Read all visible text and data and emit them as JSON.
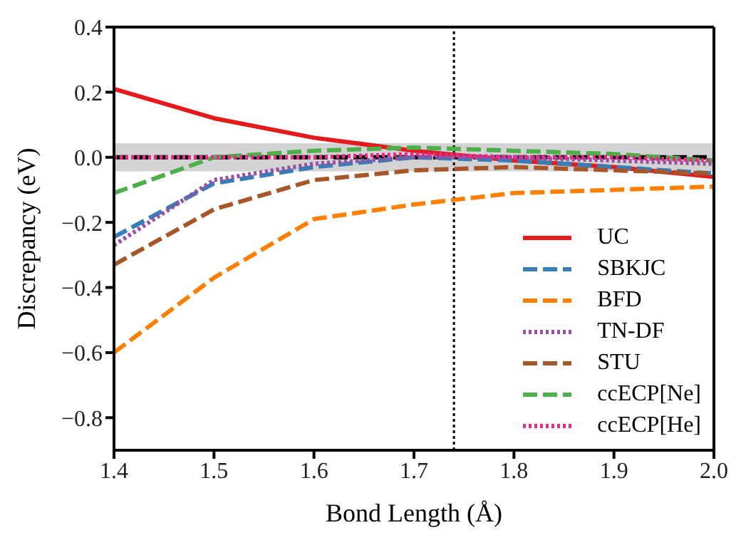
{
  "chart_data": {
    "type": "line",
    "xlabel": "Bond Length (Å)",
    "ylabel": "Discrepancy (eV)",
    "x": [
      1.4,
      1.5,
      1.6,
      1.7,
      1.8,
      1.9,
      2.0
    ],
    "xlim": [
      1.4,
      2.0
    ],
    "xticks": [
      1.4,
      1.5,
      1.6,
      1.7,
      1.8,
      1.9,
      {
        "value": 2.0,
        "label": "2.0"
      }
    ],
    "ylim": [
      -0.9,
      0.4
    ],
    "yticks": [
      -0.8,
      -0.6,
      -0.4,
      -0.2,
      {
        "value": 0.0,
        "label": "0.0"
      },
      0.2,
      0.4
    ],
    "legend": "bottom right",
    "marker": "none",
    "series": [
      {
        "name": "UC",
        "color": "#e41a1c",
        "line_style": "solid",
        "values": [
          0.21,
          0.12,
          0.06,
          0.02,
          -0.01,
          -0.03,
          -0.06
        ]
      },
      {
        "name": "SBKJC",
        "color": "#377eb8",
        "line_style": "dashed",
        "values": [
          -0.245,
          -0.08,
          -0.03,
          0.0,
          -0.01,
          -0.03,
          -0.05
        ]
      },
      {
        "name": "BFD",
        "color": "#ff7f00",
        "line_style": "dashed",
        "values": [
          -0.6,
          -0.37,
          -0.19,
          -0.145,
          -0.11,
          -0.1,
          -0.09
        ]
      },
      {
        "name": "TN-DF",
        "color": "#984ea3",
        "line_style": "dotted",
        "values": [
          -0.27,
          -0.07,
          -0.02,
          0.0,
          0.0,
          -0.01,
          -0.02
        ]
      },
      {
        "name": "STU",
        "color": "#a65628",
        "line_style": "dashed",
        "values": [
          -0.33,
          -0.16,
          -0.07,
          -0.04,
          -0.03,
          -0.04,
          -0.05
        ]
      },
      {
        "name": "ccECP[Ne]",
        "color": "#4daf4a",
        "line_style": "dashed",
        "values": [
          -0.11,
          0.0,
          0.02,
          0.03,
          0.02,
          0.01,
          -0.01
        ]
      },
      {
        "name": "ccECP[He]",
        "color": "#e7298a",
        "line_style": "dotted",
        "values": [
          0.0,
          0.0,
          0.0,
          0.01,
          0.0,
          0.0,
          -0.01
        ]
      }
    ],
    "ref_lines": [
      {
        "axis": "y",
        "value": 0,
        "color": "#000000",
        "line_style": "dashed"
      },
      {
        "axis": "x",
        "value": 1.74,
        "color": "#000000",
        "line_style": "dotted"
      }
    ],
    "bands": [
      {
        "axis": "y",
        "from": -0.043,
        "to": 0.043,
        "color": "#d3d3d3"
      }
    ]
  }
}
